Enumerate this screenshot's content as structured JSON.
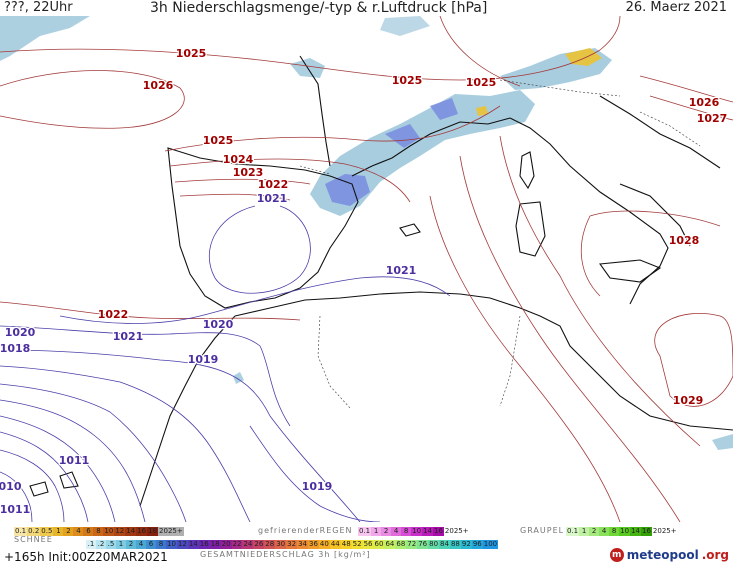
{
  "header": {
    "left": "???, 22Uhr",
    "title": "3h Niederschlagsmenge/-typ & r.Luftdruck [hPa]",
    "date": "26. Maerz 2021"
  },
  "isobars": {
    "high_labels": [
      {
        "id": "h1025a",
        "text": "1025"
      },
      {
        "id": "h1026a",
        "text": "1026"
      },
      {
        "id": "h1025b",
        "text": "1025"
      },
      {
        "id": "h1025c",
        "text": "1025"
      },
      {
        "id": "h1026b",
        "text": "1026"
      },
      {
        "id": "h1027",
        "text": "1027"
      },
      {
        "id": "h1025d",
        "text": "1025"
      },
      {
        "id": "h1024",
        "text": "1024"
      },
      {
        "id": "h1023",
        "text": "1023"
      },
      {
        "id": "h1022a",
        "text": "1022"
      },
      {
        "id": "h1028",
        "text": "1028"
      },
      {
        "id": "h1022b",
        "text": "1022"
      },
      {
        "id": "h1029",
        "text": "1029"
      }
    ],
    "low_labels": [
      {
        "id": "l1021a",
        "text": "1021"
      },
      {
        "id": "l1021b",
        "text": "1021"
      },
      {
        "id": "l1021c",
        "text": "1021"
      },
      {
        "id": "l1020a",
        "text": "1020"
      },
      {
        "id": "l1020b",
        "text": "1020"
      },
      {
        "id": "l1018",
        "text": "1018"
      },
      {
        "id": "l1019a",
        "text": "1019"
      },
      {
        "id": "l1019b",
        "text": "1019"
      },
      {
        "id": "l1011a",
        "text": "1011"
      },
      {
        "id": "l1010",
        "text": "010"
      },
      {
        "id": "l1011b",
        "text": "1011"
      }
    ]
  },
  "colors": {
    "isobar_high": "#a33a3a",
    "isobar_low": "#4a3fa8",
    "label_high": "#a00000",
    "label_low": "#4b2fa0",
    "coast": "#111111",
    "precip_light": "#9fc8dc",
    "precip_mid": "#7a8fe0",
    "precip_snow": "#e8c23a"
  },
  "legend": {
    "snow_row": [
      "0.1",
      "0.2",
      "0.5",
      "1",
      "2",
      "4",
      "6",
      "8",
      "10",
      "12",
      "14",
      "16",
      "18",
      "2025+"
    ],
    "freezing_label": "gefrierenderREGEN",
    "freezing_row": [
      "0.1",
      "1",
      "2",
      "4",
      "8",
      "10",
      "14",
      "16",
      "2025+"
    ],
    "graupel_label": "GRAUPEL",
    "graupel_row": [
      "0.1",
      "1",
      "2",
      "4",
      "8",
      "10",
      "14",
      "16",
      "2025+"
    ],
    "snow_label": "SCHNEE",
    "total_row": [
      ".1",
      ".2",
      ".5",
      "1",
      "2",
      "4",
      "6",
      "8",
      "10",
      "12",
      "14",
      "16",
      "18",
      "20",
      "22",
      "24",
      "26",
      "28",
      "30",
      "32",
      "34",
      "36",
      "40",
      "44",
      "48",
      "52",
      "56",
      "60",
      "64",
      "68",
      "72",
      "76",
      "80",
      "84",
      "88",
      "92",
      "96",
      "100"
    ],
    "total_label": "GESAMTNIEDERSCHLAG 3h [kg/m²]"
  },
  "footer": {
    "left": "+165h Init:00Z20MAR2021",
    "logo_name": "meteopool",
    "logo_tld": ".org",
    "logo_icon": "m"
  }
}
